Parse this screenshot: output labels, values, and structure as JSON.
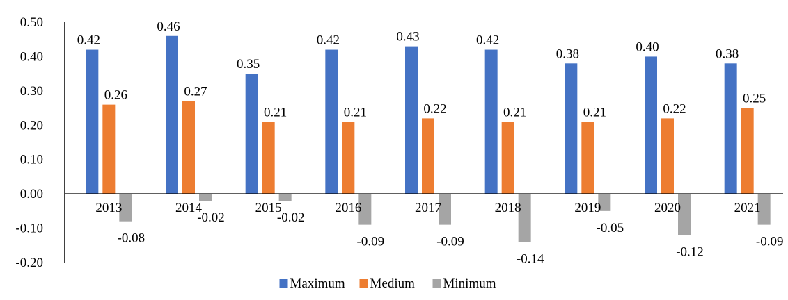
{
  "chart_data": {
    "type": "bar",
    "title": "",
    "xlabel": "",
    "ylabel": "",
    "categories": [
      "2013",
      "2014",
      "2015",
      "2016",
      "2017",
      "2018",
      "2019",
      "2020",
      "2021"
    ],
    "series": [
      {
        "name": "Maximum",
        "color": "#4472C4",
        "values": [
          0.42,
          0.46,
          0.35,
          0.42,
          0.43,
          0.42,
          0.38,
          0.4,
          0.38
        ]
      },
      {
        "name": "Medium",
        "color": "#ED7D31",
        "values": [
          0.26,
          0.27,
          0.21,
          0.21,
          0.22,
          0.21,
          0.21,
          0.22,
          0.25
        ]
      },
      {
        "name": "Minimum",
        "color": "#A5A5A5",
        "values": [
          -0.08,
          -0.02,
          -0.02,
          -0.09,
          -0.09,
          -0.14,
          -0.05,
          -0.12,
          -0.09
        ]
      }
    ],
    "ylim": [
      -0.2,
      0.5
    ],
    "yticks": [
      "0.50",
      "0.40",
      "0.30",
      "0.20",
      "0.10",
      "0.00",
      "-0.10",
      "-0.20"
    ],
    "ytick_values": [
      0.5,
      0.4,
      0.3,
      0.2,
      0.1,
      0.0,
      -0.1,
      -0.2
    ],
    "data_label_format": 2,
    "grid": false,
    "legend_position": "bottom"
  }
}
